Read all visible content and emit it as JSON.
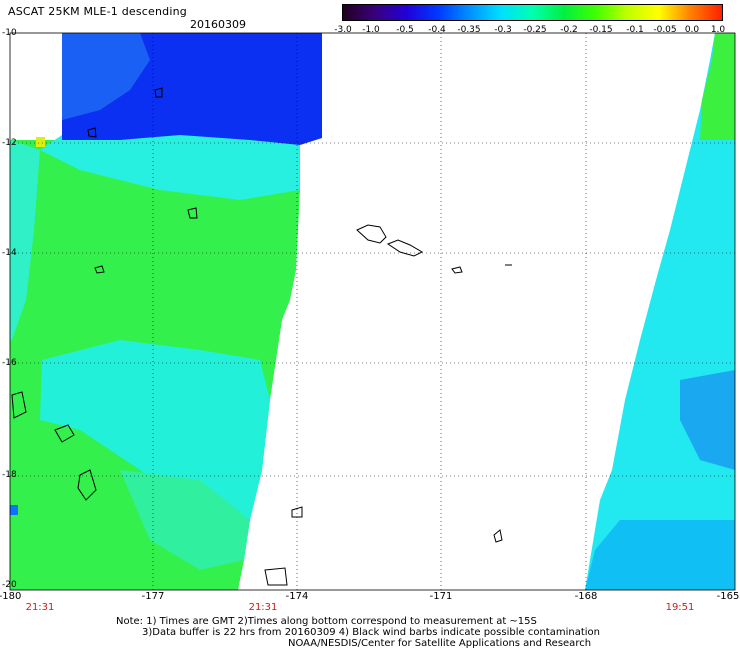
{
  "header": {
    "title": "ASCAT 25KM MLE-1 descending",
    "date": "20160309"
  },
  "colorbar": {
    "stops": [
      "#200020",
      "#3a007a",
      "#2200d8",
      "#0038ff",
      "#0090ff",
      "#00e0ff",
      "#00ffb0",
      "#00f040",
      "#40ff00",
      "#c0ff00",
      "#ffff00",
      "#ff8000",
      "#ff2000"
    ],
    "labels": [
      "-3.0",
      "-1.0",
      "-0.5",
      "-0.4",
      "-0.35",
      "-0.3",
      "-0.25",
      "-0.2",
      "-0.15",
      "-0.1",
      "-0.05",
      "0.0",
      "1.0"
    ]
  },
  "axes": {
    "y_labels": [
      "-10",
      "-12",
      "-14",
      "-16",
      "-18",
      "-20"
    ],
    "x_labels": [
      "-180",
      "-177",
      "-174",
      "-171",
      "-168",
      "-165"
    ]
  },
  "times": [
    "21:31",
    "21:31",
    "19:51"
  ],
  "notes": {
    "line1": "Note: 1) Times are GMT 2)Times along bottom correspond to measurement at ~15S",
    "line2": "3)Data buffer is 22 hrs from 20160309 4) Black wind barbs indicate possible contamination",
    "line3": "NOAA/NESDIS/Center for Satellite Applications and Research"
  },
  "colors": {
    "swath_blue": "#0a2ef0",
    "swath_cyan": "#1ff0f0",
    "swath_green": "#2ff02a",
    "time_red": "#c8201a"
  }
}
